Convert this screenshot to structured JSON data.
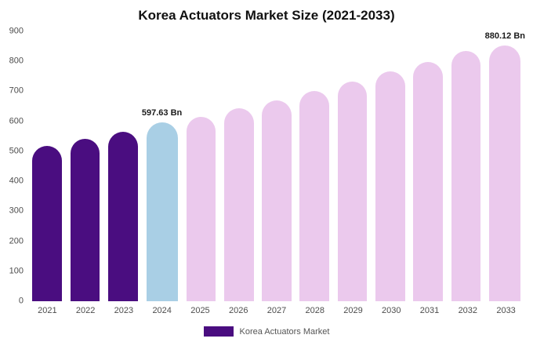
{
  "chart_data": {
    "type": "bar",
    "title": "Korea Actuators Market Size (2021-2033)",
    "categories": [
      "2021",
      "2022",
      "2023",
      "2024",
      "2025",
      "2026",
      "2027",
      "2028",
      "2029",
      "2030",
      "2031",
      "2032",
      "2033"
    ],
    "values": [
      517,
      541,
      566,
      597.63,
      615,
      643,
      670,
      701,
      733,
      766,
      799,
      834,
      880.12
    ],
    "ylim": [
      0,
      900
    ],
    "yticks": [
      0,
      100,
      200,
      300,
      400,
      500,
      600,
      700,
      800,
      900
    ],
    "grid": false,
    "xlabel": "",
    "ylabel": "",
    "legend_label": "Korea Actuators Market",
    "legend_position": "bottom",
    "colors": {
      "historical": "#4a0d80",
      "highlight": "#a9cfe5",
      "forecast": "#ebc9ed"
    },
    "bar_roles": [
      "historical",
      "historical",
      "historical",
      "highlight",
      "forecast",
      "forecast",
      "forecast",
      "forecast",
      "forecast",
      "forecast",
      "forecast",
      "forecast",
      "forecast"
    ],
    "annotations": [
      {
        "category": "2024",
        "text": "597.63 Bn"
      },
      {
        "category": "2033",
        "text": "880.12 Bn"
      }
    ]
  }
}
